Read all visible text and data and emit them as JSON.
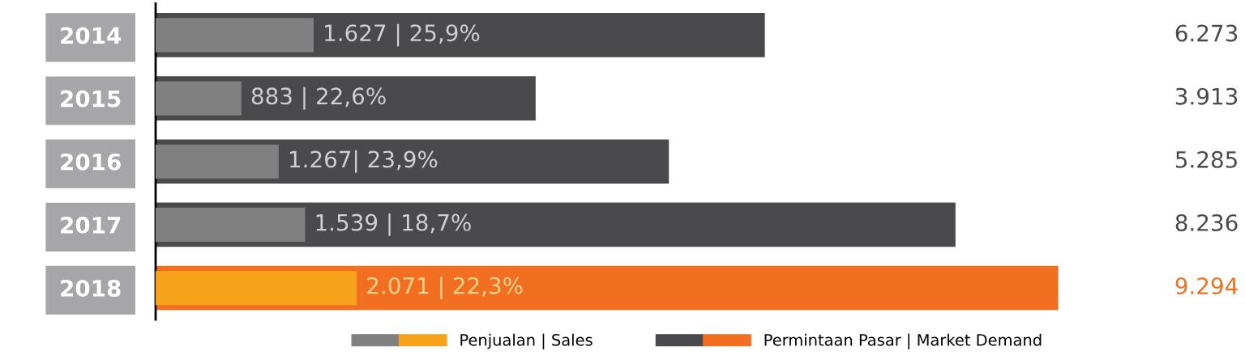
{
  "chart_data": {
    "type": "bar",
    "orientation": "horizontal",
    "categories": [
      "2014",
      "2015",
      "2016",
      "2017",
      "2018"
    ],
    "series": [
      {
        "name": "Permintaan Pasar | Market Demand",
        "colors": [
          "#4a4a4c",
          "#4a4a4c",
          "#4a4a4c",
          "#4a4a4c",
          "#f26f21"
        ],
        "values": [
          6273,
          3913,
          5285,
          8236,
          9294
        ],
        "value_labels": [
          "6.273",
          "3.913",
          "5.285",
          "8.236",
          "9.294"
        ]
      },
      {
        "name": "Penjualan | Sales",
        "colors": [
          "#808080",
          "#808080",
          "#808080",
          "#808080",
          "#f7a21b"
        ],
        "values": [
          1627,
          883,
          1267,
          1539,
          2071
        ],
        "value_labels": [
          "1.627 | 25,9%",
          "883 | 22,6%",
          "1.267| 23,9%",
          "1.539 | 18,7%",
          "2.071 | 22,3%"
        ]
      }
    ],
    "legend": "bottom",
    "grid": false
  }
}
